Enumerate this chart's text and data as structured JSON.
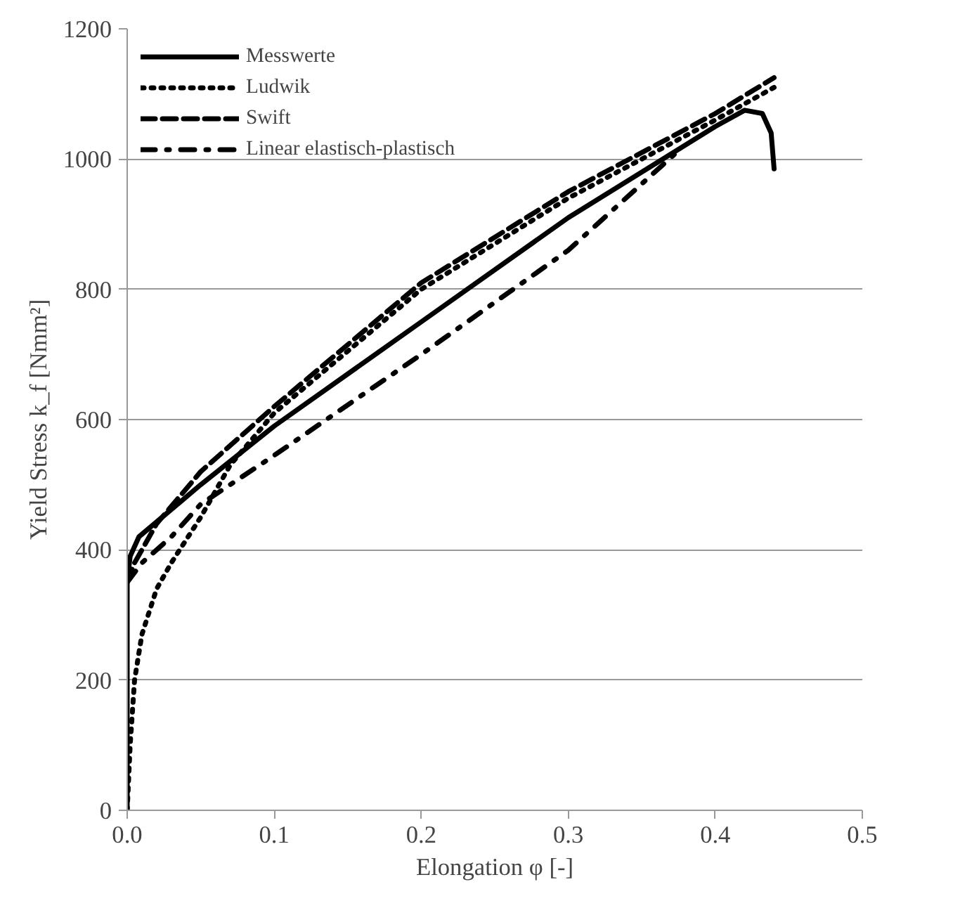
{
  "chart_data": {
    "type": "line",
    "xlabel": "Elongation φ [-]",
    "ylabel": "Yield Stress k_f [Nmm²]",
    "xlim": [
      0,
      0.5
    ],
    "ylim": [
      0,
      1200
    ],
    "xticks": [
      {
        "value": 0,
        "label": "0.0"
      },
      0.1,
      0.2,
      0.3,
      0.4,
      0.5
    ],
    "yticks": [
      0,
      200,
      400,
      600,
      800,
      1000,
      1200
    ],
    "grid": "y",
    "legend": "top left",
    "series": [
      {
        "name": "Messwerte",
        "color": "#000000",
        "line_style": "solid",
        "x": [
          0,
          0,
          0.002,
          0.008,
          0.05,
          0.1,
          0.2,
          0.3,
          0.4,
          0.42,
          0.432,
          0.438,
          0.44
        ],
        "values": [
          0,
          350,
          390,
          420,
          500,
          590,
          750,
          910,
          1050,
          1075,
          1070,
          1040,
          985
        ]
      },
      {
        "name": "Ludwik",
        "color": "#000000",
        "line_style": "dotted",
        "x": [
          0,
          0.002,
          0.005,
          0.01,
          0.02,
          0.03,
          0.05,
          0.07,
          0.1,
          0.2,
          0.3,
          0.4,
          0.44
        ],
        "values": [
          0,
          100,
          200,
          270,
          340,
          380,
          450,
          530,
          610,
          800,
          940,
          1060,
          1110
        ]
      },
      {
        "name": "Swift",
        "color": "#000000",
        "line_style": "dashed",
        "x": [
          0,
          0.005,
          0.02,
          0.05,
          0.1,
          0.2,
          0.3,
          0.4,
          0.44
        ],
        "values": [
          350,
          380,
          440,
          520,
          620,
          810,
          950,
          1070,
          1125
        ]
      },
      {
        "name": "Linear elastisch-plastisch",
        "color": "#000000",
        "line_style": "dashdot",
        "x": [
          0,
          0.01,
          0.03,
          0.05,
          0.1,
          0.2,
          0.3,
          0.376
        ],
        "values": [
          350,
          380,
          420,
          470,
          545,
          700,
          860,
          1015
        ]
      }
    ]
  }
}
